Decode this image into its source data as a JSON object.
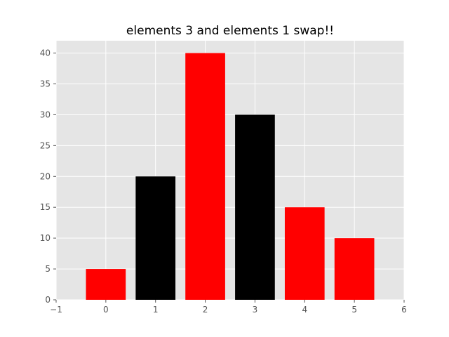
{
  "chart_data": {
    "type": "bar",
    "title": "elements 3 and elements 1 swap!!",
    "xlabel": "",
    "ylabel": "",
    "x": [
      0,
      1,
      2,
      3,
      4,
      5
    ],
    "values": [
      5,
      20,
      40,
      30,
      15,
      10
    ],
    "bar_colors": [
      "#ff0000",
      "#000000",
      "#ff0000",
      "#000000",
      "#ff0000",
      "#ff0000"
    ],
    "xlim": [
      -1,
      6
    ],
    "ylim": [
      0,
      42
    ],
    "x_ticks": [
      "−1",
      "0",
      "1",
      "2",
      "3",
      "4",
      "5",
      "6"
    ],
    "y_ticks": [
      "0",
      "5",
      "10",
      "15",
      "20",
      "25",
      "30",
      "35",
      "40"
    ],
    "grid": true,
    "background_color": "#e5e5e5",
    "grid_color": "#ffffff"
  }
}
